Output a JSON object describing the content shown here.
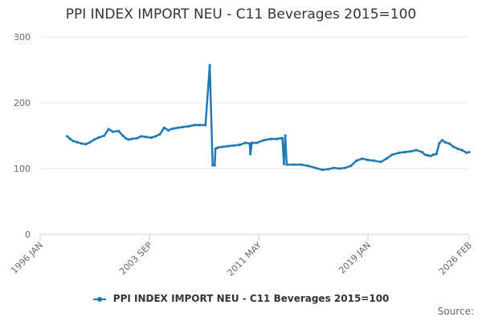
{
  "chart_data": {
    "type": "line",
    "title": "PPI INDEX IMPORT NEU - C11 Beverages 2015=100",
    "xlabel": "",
    "ylabel": "",
    "xlim": [
      1996.0,
      2026.1
    ],
    "ylim": [
      0,
      300
    ],
    "yticks": [
      0,
      100,
      200,
      300
    ],
    "xticks": [
      {
        "label": "1996 JAN",
        "value": 1996.0
      },
      {
        "label": "2003 SEP",
        "value": 2003.67
      },
      {
        "label": "2011 MAY",
        "value": 2011.33
      },
      {
        "label": "2019 JAN",
        "value": 2019.0
      },
      {
        "label": "2026 FEB",
        "value": 2026.1
      }
    ],
    "grid": true,
    "legend_position": "bottom",
    "series": [
      {
        "name": "PPI INDEX IMPORT NEU - C11 Beverages 2015=100",
        "color": "#1f7ab5",
        "x": [
          1997.9,
          1998.1,
          1998.3,
          1998.6,
          1998.9,
          1999.2,
          1999.5,
          1999.8,
          2000.1,
          2000.5,
          2000.8,
          2001.1,
          2001.5,
          2001.8,
          2002.0,
          2002.2,
          2002.4,
          2002.8,
          2003.1,
          2003.4,
          2003.8,
          2004.1,
          2004.4,
          2004.7,
          2005.0,
          2005.2,
          2005.4,
          2005.7,
          2006.0,
          2006.4,
          2006.8,
          2007.2,
          2007.6,
          2007.9,
          2008.1,
          2008.25,
          2008.3,
          2008.4,
          2008.5,
          2008.8,
          2009.2,
          2009.6,
          2010.0,
          2010.4,
          2010.7,
          2010.75,
          2010.85,
          2011.2,
          2011.7,
          2012.2,
          2012.6,
          2012.9,
          2013.0,
          2013.1,
          2013.2,
          2013.3,
          2013.8,
          2014.3,
          2014.8,
          2015.3,
          2015.8,
          2016.2,
          2016.6,
          2017.0,
          2017.4,
          2017.8,
          2018.2,
          2018.6,
          2019.0,
          2019.4,
          2019.9,
          2020.3,
          2020.7,
          2021.2,
          2021.6,
          2022.0,
          2022.4,
          2022.8,
          2023.0,
          2023.2,
          2023.4,
          2023.6,
          2023.8,
          2024.0,
          2024.2,
          2024.4,
          2024.7,
          2025.0,
          2025.3,
          2025.6,
          2025.9,
          2026.1
        ],
        "y": [
          149,
          145,
          142,
          140,
          138,
          137,
          140,
          144,
          147,
          150,
          160,
          156,
          157,
          150,
          146,
          144,
          145,
          146,
          149,
          148,
          147,
          149,
          152,
          162,
          158,
          160,
          161,
          162,
          163,
          164,
          166,
          166,
          166,
          257,
          105,
          105,
          130,
          131,
          132,
          133,
          134,
          135,
          136,
          139,
          138,
          122,
          139,
          139,
          143,
          145,
          145,
          146,
          146,
          107,
          150,
          106,
          106,
          106,
          104,
          101,
          98,
          99,
          101,
          100,
          101,
          104,
          112,
          115,
          113,
          112,
          110,
          115,
          121,
          124,
          125,
          126,
          128,
          125,
          121,
          120,
          119,
          121,
          122,
          138,
          143,
          140,
          138,
          133,
          130,
          128,
          124,
          125
        ]
      }
    ]
  },
  "legend": {
    "label": "PPI INDEX IMPORT NEU - C11 Beverages 2015=100"
  },
  "footer": {
    "source_label": "Source:"
  }
}
